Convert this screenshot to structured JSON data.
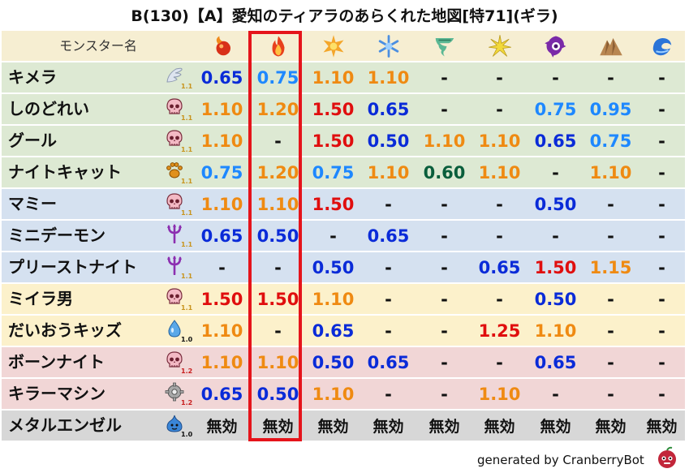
{
  "title": "B(130)【A】愛知のティアラのあらくれた地図[特71](ギラ)",
  "header": {
    "name_label": "モンスター名",
    "elements": [
      {
        "icon": "fire-orb-icon",
        "color": "#e8401c"
      },
      {
        "icon": "fire-flame-icon",
        "color": "#e8401c"
      },
      {
        "icon": "explosion-icon",
        "color": "#f0a020"
      },
      {
        "icon": "ice-snowflake-icon",
        "color": "#5a9ee8"
      },
      {
        "icon": "wind-tornado-icon",
        "color": "#4caf8c"
      },
      {
        "icon": "lightning-burst-icon",
        "color": "#e6c825"
      },
      {
        "icon": "dark-swirl-icon",
        "color": "#7a2aa8"
      },
      {
        "icon": "earth-mountain-icon",
        "color": "#b48250"
      },
      {
        "icon": "water-wave-icon",
        "color": "#2a74d8"
      }
    ]
  },
  "colors": {
    "header_bg": "#f6eed2",
    "green": "#dde9d3",
    "blue": "#d5e1f0",
    "yellow": "#fcf1cb",
    "pink": "#f1d6d6",
    "gray": "#d7d7d7",
    "val_blue": "#0a2bd8",
    "val_light_blue": "#1e88ff",
    "val_orange": "#ef8a12",
    "val_red": "#e00e0e",
    "val_dark": "#111111",
    "val_dark_green": "#0a5e3c",
    "highlight": "#e5141b"
  },
  "rows": [
    {
      "name": "キメラ",
      "type_icon": "bird-wing-icon",
      "level": "1.1",
      "bg": "green",
      "values": [
        {
          "t": "0.65",
          "c": "val_blue"
        },
        {
          "t": "0.75",
          "c": "val_light_blue"
        },
        {
          "t": "1.10",
          "c": "val_orange"
        },
        {
          "t": "1.10",
          "c": "val_orange"
        },
        {
          "t": "-",
          "c": "val_dark"
        },
        {
          "t": "-",
          "c": "val_dark"
        },
        {
          "t": "-",
          "c": "val_dark"
        },
        {
          "t": "-",
          "c": "val_dark"
        },
        {
          "t": "-",
          "c": "val_dark"
        }
      ]
    },
    {
      "name": "しのどれい",
      "type_icon": "skull-icon",
      "level": "1.1",
      "bg": "green",
      "values": [
        {
          "t": "1.10",
          "c": "val_orange"
        },
        {
          "t": "1.20",
          "c": "val_orange"
        },
        {
          "t": "1.50",
          "c": "val_red"
        },
        {
          "t": "0.65",
          "c": "val_blue"
        },
        {
          "t": "-",
          "c": "val_dark"
        },
        {
          "t": "-",
          "c": "val_dark"
        },
        {
          "t": "0.75",
          "c": "val_light_blue"
        },
        {
          "t": "0.95",
          "c": "val_light_blue"
        },
        {
          "t": "-",
          "c": "val_dark"
        }
      ]
    },
    {
      "name": "グール",
      "type_icon": "skull-icon",
      "level": "1.1",
      "bg": "green",
      "values": [
        {
          "t": "1.10",
          "c": "val_orange"
        },
        {
          "t": "-",
          "c": "val_dark"
        },
        {
          "t": "1.50",
          "c": "val_red"
        },
        {
          "t": "0.50",
          "c": "val_blue"
        },
        {
          "t": "1.10",
          "c": "val_orange"
        },
        {
          "t": "1.10",
          "c": "val_orange"
        },
        {
          "t": "0.65",
          "c": "val_blue"
        },
        {
          "t": "0.75",
          "c": "val_light_blue"
        },
        {
          "t": "-",
          "c": "val_dark"
        }
      ]
    },
    {
      "name": "ナイトキャット",
      "type_icon": "paw-icon",
      "level": "1.1",
      "bg": "green",
      "values": [
        {
          "t": "0.75",
          "c": "val_light_blue"
        },
        {
          "t": "1.20",
          "c": "val_orange"
        },
        {
          "t": "0.75",
          "c": "val_light_blue"
        },
        {
          "t": "1.10",
          "c": "val_orange"
        },
        {
          "t": "0.60",
          "c": "val_dark_green"
        },
        {
          "t": "1.10",
          "c": "val_orange"
        },
        {
          "t": "-",
          "c": "val_dark"
        },
        {
          "t": "1.10",
          "c": "val_orange"
        },
        {
          "t": "-",
          "c": "val_dark"
        }
      ]
    },
    {
      "name": "マミー",
      "type_icon": "skull-icon",
      "level": "1.1",
      "bg": "blue",
      "values": [
        {
          "t": "1.10",
          "c": "val_orange"
        },
        {
          "t": "1.10",
          "c": "val_orange"
        },
        {
          "t": "1.50",
          "c": "val_red"
        },
        {
          "t": "-",
          "c": "val_dark"
        },
        {
          "t": "-",
          "c": "val_dark"
        },
        {
          "t": "-",
          "c": "val_dark"
        },
        {
          "t": "0.50",
          "c": "val_blue"
        },
        {
          "t": "-",
          "c": "val_dark"
        },
        {
          "t": "-",
          "c": "val_dark"
        }
      ]
    },
    {
      "name": "ミニデーモン",
      "type_icon": "trident-icon",
      "level": "1.1",
      "bg": "blue",
      "values": [
        {
          "t": "0.65",
          "c": "val_blue"
        },
        {
          "t": "0.50",
          "c": "val_blue"
        },
        {
          "t": "-",
          "c": "val_dark"
        },
        {
          "t": "0.65",
          "c": "val_blue"
        },
        {
          "t": "-",
          "c": "val_dark"
        },
        {
          "t": "-",
          "c": "val_dark"
        },
        {
          "t": "-",
          "c": "val_dark"
        },
        {
          "t": "-",
          "c": "val_dark"
        },
        {
          "t": "-",
          "c": "val_dark"
        }
      ]
    },
    {
      "name": "プリーストナイト",
      "type_icon": "trident-icon",
      "level": "1.1",
      "bg": "blue",
      "values": [
        {
          "t": "-",
          "c": "val_dark"
        },
        {
          "t": "-",
          "c": "val_dark"
        },
        {
          "t": "0.50",
          "c": "val_blue"
        },
        {
          "t": "-",
          "c": "val_dark"
        },
        {
          "t": "-",
          "c": "val_dark"
        },
        {
          "t": "0.65",
          "c": "val_blue"
        },
        {
          "t": "1.50",
          "c": "val_red"
        },
        {
          "t": "1.15",
          "c": "val_orange"
        },
        {
          "t": "-",
          "c": "val_dark"
        }
      ]
    },
    {
      "name": "ミイラ男",
      "type_icon": "skull-icon",
      "level": "1.1",
      "bg": "yellow",
      "values": [
        {
          "t": "1.50",
          "c": "val_red"
        },
        {
          "t": "1.50",
          "c": "val_red"
        },
        {
          "t": "1.10",
          "c": "val_orange"
        },
        {
          "t": "-",
          "c": "val_dark"
        },
        {
          "t": "-",
          "c": "val_dark"
        },
        {
          "t": "-",
          "c": "val_dark"
        },
        {
          "t": "0.50",
          "c": "val_blue"
        },
        {
          "t": "-",
          "c": "val_dark"
        },
        {
          "t": "-",
          "c": "val_dark"
        }
      ]
    },
    {
      "name": "だいおうキッズ",
      "type_icon": "water-drop-icon",
      "level": "1.0",
      "bg": "yellow",
      "values": [
        {
          "t": "1.10",
          "c": "val_orange"
        },
        {
          "t": "-",
          "c": "val_dark"
        },
        {
          "t": "0.65",
          "c": "val_blue"
        },
        {
          "t": "-",
          "c": "val_dark"
        },
        {
          "t": "-",
          "c": "val_dark"
        },
        {
          "t": "1.25",
          "c": "val_red"
        },
        {
          "t": "1.10",
          "c": "val_orange"
        },
        {
          "t": "-",
          "c": "val_dark"
        },
        {
          "t": "-",
          "c": "val_dark"
        }
      ]
    },
    {
      "name": "ボーンナイト",
      "type_icon": "skull-icon",
      "level": "1.2",
      "bg": "pink",
      "values": [
        {
          "t": "1.10",
          "c": "val_orange"
        },
        {
          "t": "1.10",
          "c": "val_orange"
        },
        {
          "t": "0.50",
          "c": "val_blue"
        },
        {
          "t": "0.65",
          "c": "val_blue"
        },
        {
          "t": "-",
          "c": "val_dark"
        },
        {
          "t": "-",
          "c": "val_dark"
        },
        {
          "t": "0.65",
          "c": "val_blue"
        },
        {
          "t": "-",
          "c": "val_dark"
        },
        {
          "t": "-",
          "c": "val_dark"
        }
      ]
    },
    {
      "name": "キラーマシン",
      "type_icon": "gear-icon",
      "level": "1.2",
      "bg": "pink",
      "values": [
        {
          "t": "0.65",
          "c": "val_blue"
        },
        {
          "t": "0.50",
          "c": "val_blue"
        },
        {
          "t": "1.10",
          "c": "val_orange"
        },
        {
          "t": "-",
          "c": "val_dark"
        },
        {
          "t": "-",
          "c": "val_dark"
        },
        {
          "t": "1.10",
          "c": "val_orange"
        },
        {
          "t": "-",
          "c": "val_dark"
        },
        {
          "t": "-",
          "c": "val_dark"
        },
        {
          "t": "-",
          "c": "val_dark"
        }
      ]
    },
    {
      "name": "メタルエンゼル",
      "type_icon": "slime-icon",
      "level": "1.0",
      "bg": "gray",
      "values": [
        {
          "t": "無効",
          "c": "val_dark"
        },
        {
          "t": "無効",
          "c": "val_dark"
        },
        {
          "t": "無効",
          "c": "val_dark"
        },
        {
          "t": "無効",
          "c": "val_dark"
        },
        {
          "t": "無効",
          "c": "val_dark"
        },
        {
          "t": "無効",
          "c": "val_dark"
        },
        {
          "t": "無効",
          "c": "val_dark"
        },
        {
          "t": "無効",
          "c": "val_dark"
        },
        {
          "t": "無効",
          "c": "val_dark"
        }
      ]
    }
  ],
  "footer": {
    "text": "generated by CranberryBot",
    "icon": "cranberry-bot-icon"
  }
}
